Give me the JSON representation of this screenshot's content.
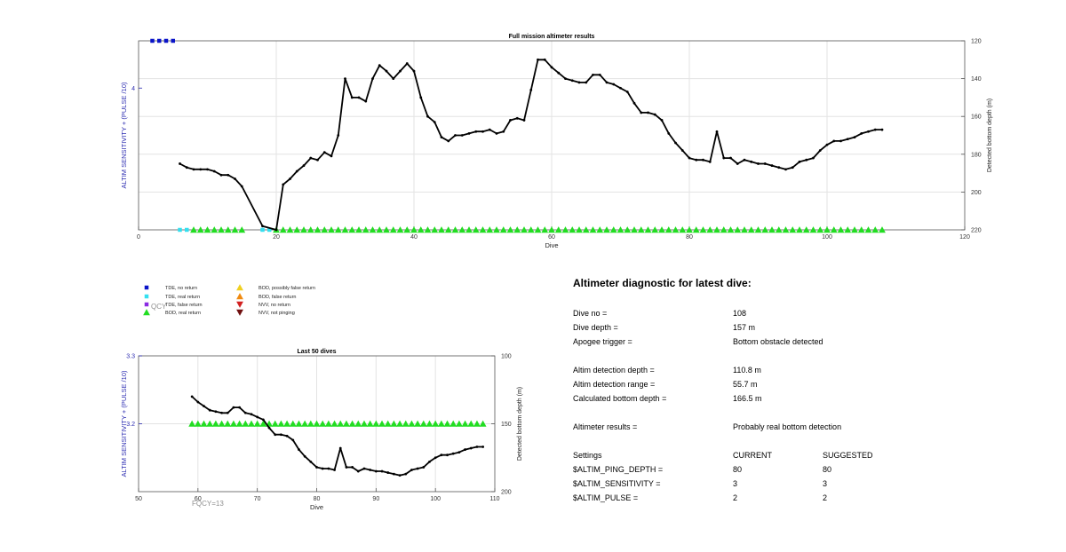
{
  "chart_data": [
    {
      "type": "line",
      "title": "Full mission altimeter results",
      "xlabel": "Dive",
      "ylabel_left": "ALTIM SENSITIVITY + (PULSE /10)",
      "ylabel_right": "Detected bottom depth (m)",
      "xlim": [
        0,
        120
      ],
      "xticks": [
        0,
        20,
        40,
        60,
        80,
        100,
        120
      ],
      "ylim_left": [
        3.4,
        4.2
      ],
      "yticks_left": [
        4
      ],
      "ylim_right": [
        120,
        220
      ],
      "yticks_right": [
        120,
        140,
        160,
        180,
        200,
        220
      ],
      "right_axis_reversed": true,
      "grid": true,
      "series": [
        {
          "axis": "right",
          "color": "#000000",
          "x": [
            6,
            7,
            8,
            9,
            10,
            11,
            12,
            13,
            14,
            15,
            18,
            20,
            21,
            22,
            23,
            24,
            25,
            26,
            27,
            28,
            29,
            30,
            31,
            32,
            33,
            34,
            35,
            36,
            37,
            38,
            39,
            40,
            41,
            42,
            43,
            44,
            45,
            46,
            47,
            48,
            49,
            50,
            51,
            52,
            53,
            54,
            55,
            56,
            57,
            58,
            59,
            60,
            61,
            62,
            63,
            64,
            65,
            66,
            67,
            68,
            69,
            70,
            71,
            72,
            73,
            74,
            75,
            76,
            77,
            78,
            79,
            80,
            81,
            82,
            83,
            84,
            85,
            86,
            87,
            88,
            89,
            90,
            91,
            92,
            93,
            94,
            95,
            96,
            97,
            98,
            99,
            100,
            101,
            102,
            103,
            104,
            105,
            106,
            107,
            108
          ],
          "values": [
            185,
            187,
            188,
            188,
            188,
            189,
            191,
            191,
            193,
            197,
            218,
            220,
            196,
            193,
            189,
            186,
            182,
            183,
            179,
            181,
            170,
            140,
            150,
            150,
            152,
            140,
            133,
            136,
            140,
            136,
            132,
            136,
            150,
            160,
            163,
            171,
            173,
            170,
            170,
            169,
            168,
            168,
            167,
            169,
            168,
            162,
            161,
            162,
            146,
            130,
            130,
            134,
            137,
            140,
            141,
            142,
            142,
            138,
            138,
            142,
            143,
            145,
            147,
            153,
            158,
            158,
            159,
            162,
            169,
            174,
            178,
            182,
            183,
            183,
            184,
            168,
            182,
            182,
            185,
            183,
            184,
            185,
            185,
            186,
            187,
            188,
            187,
            184,
            183,
            182,
            178,
            175,
            173,
            173,
            172,
            171,
            169,
            168,
            167,
            167
          ]
        }
      ],
      "markers": [
        {
          "legend": "TDE, no return",
          "axis": "right",
          "y": 120,
          "x": [
            2,
            3,
            4,
            5
          ]
        },
        {
          "legend": "TDE, real return",
          "axis": "right",
          "y": 220,
          "x": [
            6,
            7,
            18,
            19
          ]
        },
        {
          "legend": "BOD, real return",
          "axis": "right",
          "y": 220,
          "x": [
            8,
            9,
            10,
            11,
            12,
            13,
            14,
            15,
            20,
            21,
            22,
            23,
            24,
            25,
            26,
            27,
            28,
            29,
            30,
            31,
            32,
            33,
            34,
            35,
            36,
            37,
            38,
            39,
            40,
            41,
            42,
            43,
            44,
            45,
            46,
            47,
            48,
            49,
            50,
            51,
            52,
            53,
            54,
            55,
            56,
            57,
            58,
            59,
            60,
            61,
            62,
            63,
            64,
            65,
            66,
            67,
            68,
            69,
            70,
            71,
            72,
            73,
            74,
            75,
            76,
            77,
            78,
            79,
            80,
            81,
            82,
            83,
            84,
            85,
            86,
            87,
            88,
            89,
            90,
            91,
            92,
            93,
            94,
            95,
            96,
            97,
            98,
            99,
            100,
            101,
            102,
            103,
            104,
            105,
            106,
            107,
            108
          ]
        }
      ]
    },
    {
      "type": "line",
      "title": "Last 50 dives",
      "xlabel": "Dive",
      "ylabel_left": "ALTIM SENSITIVITY + (PULSE /10)",
      "ylabel_right": "Detected bottom depth (m)",
      "xlim": [
        50,
        110
      ],
      "xticks": [
        50,
        60,
        70,
        80,
        90,
        100,
        110
      ],
      "ylim_left": [
        3.1,
        3.3
      ],
      "yticks_left": [
        3.2,
        3.3
      ],
      "ylim_right": [
        100,
        200
      ],
      "yticks_right": [
        100,
        150,
        200
      ],
      "right_axis_reversed": true,
      "grid": true,
      "annotation": "FQCY=13",
      "series": [
        {
          "axis": "right",
          "color": "#000000",
          "x": [
            59,
            60,
            61,
            62,
            63,
            64,
            65,
            66,
            67,
            68,
            69,
            70,
            71,
            72,
            73,
            74,
            75,
            76,
            77,
            78,
            79,
            80,
            81,
            82,
            83,
            84,
            85,
            86,
            87,
            88,
            89,
            90,
            91,
            92,
            93,
            94,
            95,
            96,
            97,
            98,
            99,
            100,
            101,
            102,
            103,
            104,
            105,
            106,
            107,
            108
          ],
          "values": [
            130,
            134,
            137,
            140,
            141,
            142,
            142,
            138,
            138,
            142,
            143,
            145,
            147,
            153,
            158,
            158,
            159,
            162,
            169,
            174,
            178,
            182,
            183,
            183,
            184,
            168,
            182,
            182,
            185,
            183,
            184,
            185,
            185,
            186,
            187,
            188,
            187,
            184,
            183,
            182,
            178,
            175,
            173,
            173,
            172,
            171,
            169,
            168,
            167,
            167
          ]
        }
      ],
      "markers": [
        {
          "legend": "BOD, real return",
          "axis": "left",
          "y": 3.2,
          "x": [
            59,
            60,
            61,
            62,
            63,
            64,
            65,
            66,
            67,
            68,
            69,
            70,
            71,
            72,
            73,
            74,
            75,
            76,
            77,
            78,
            79,
            80,
            81,
            82,
            83,
            84,
            85,
            86,
            87,
            88,
            89,
            90,
            91,
            92,
            93,
            94,
            95,
            96,
            97,
            98,
            99,
            100,
            101,
            102,
            103,
            104,
            105,
            106,
            107,
            108
          ]
        }
      ]
    }
  ],
  "legend": {
    "items": [
      {
        "label": "TDE, no return",
        "shape": "square",
        "color": "#0a14c8"
      },
      {
        "label": "TDE, real return",
        "shape": "square",
        "color": "#33e0f0"
      },
      {
        "label": "TDE, false return",
        "shape": "square",
        "color": "#8a2be2"
      },
      {
        "label": "BOD, real return",
        "shape": "triangle-up",
        "color": "#22dd22"
      },
      {
        "label": "BOD, possibly false return",
        "shape": "triangle-up",
        "color": "#f0d020"
      },
      {
        "label": "BOD, false return",
        "shape": "triangle-up",
        "color": "#f08a10"
      },
      {
        "label": "NVV, no return",
        "shape": "triangle-down",
        "color": "#d22020"
      },
      {
        "label": "NVV, not pinging",
        "shape": "triangle-down",
        "color": "#701010"
      }
    ],
    "overlap_text": "QCY"
  },
  "diagnostic": {
    "title": "Altimeter diagnostic for latest dive:",
    "rows": [
      {
        "label": "Dive no =",
        "value": "108"
      },
      {
        "label": "Dive depth =",
        "value": "157 m"
      },
      {
        "label": "Apogee trigger =",
        "value": "Bottom obstacle detected"
      },
      {
        "label": "Altim detection depth =",
        "value": "110.8 m"
      },
      {
        "label": "Altim detection range =",
        "value": "55.7 m"
      },
      {
        "label": "Calculated bottom depth =",
        "value": "166.5 m"
      },
      {
        "label": "Altimeter results =",
        "value": "Probably real bottom detection"
      }
    ],
    "settings_header": {
      "label": "Settings",
      "current": "CURRENT",
      "suggested": "SUGGESTED"
    },
    "settings": [
      {
        "name": "$ALTIM_PING_DEPTH =",
        "current": "80",
        "suggested": "80"
      },
      {
        "name": "$ALTIM_SENSITIVITY =",
        "current": "3",
        "suggested": "3"
      },
      {
        "name": "$ALTIM_PULSE =",
        "current": "2",
        "suggested": "2"
      }
    ]
  },
  "colors": {
    "line": "#000000",
    "left_axis": "#2a2ab0",
    "grid": "#e3e3e3",
    "annotation": "#909090"
  }
}
